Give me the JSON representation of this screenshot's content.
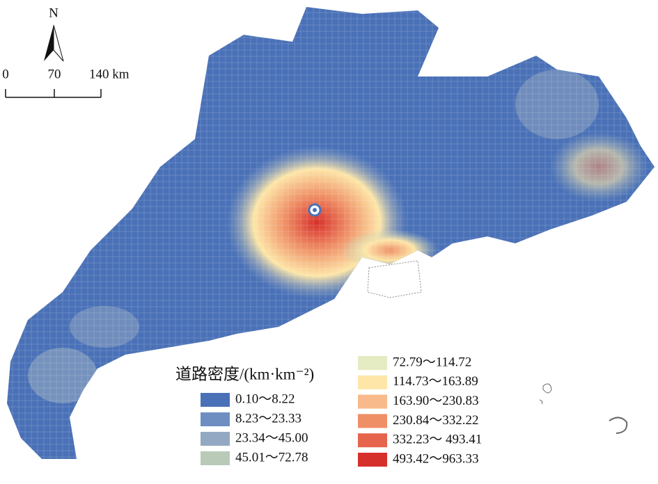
{
  "north": "N",
  "scale_bar": {
    "labels": [
      "0",
      "70",
      "140 km"
    ]
  },
  "legend": {
    "title": "道路密度/(km·km⁻²)",
    "items": [
      {
        "label": "0.10～8.22",
        "color": "#4a71b7"
      },
      {
        "label": "8.23～23.33",
        "color": "#6e8ec2"
      },
      {
        "label": "23.34～45.00",
        "color": "#93a8c2"
      },
      {
        "label": "45.01～72.78",
        "color": "#b9cab9"
      },
      {
        "label": "72.79～114.72",
        "color": "#e5ebc2"
      },
      {
        "label": "114.73～163.89",
        "color": "#fde6a8"
      },
      {
        "label": "163.90～230.83",
        "color": "#f8ba8a"
      },
      {
        "label": "230.84～332.22",
        "color": "#ef8f66"
      },
      {
        "label": "332.23～ 493.41",
        "color": "#e5644b"
      },
      {
        "label": "493.42～963.33",
        "color": "#d6302a"
      }
    ]
  }
}
